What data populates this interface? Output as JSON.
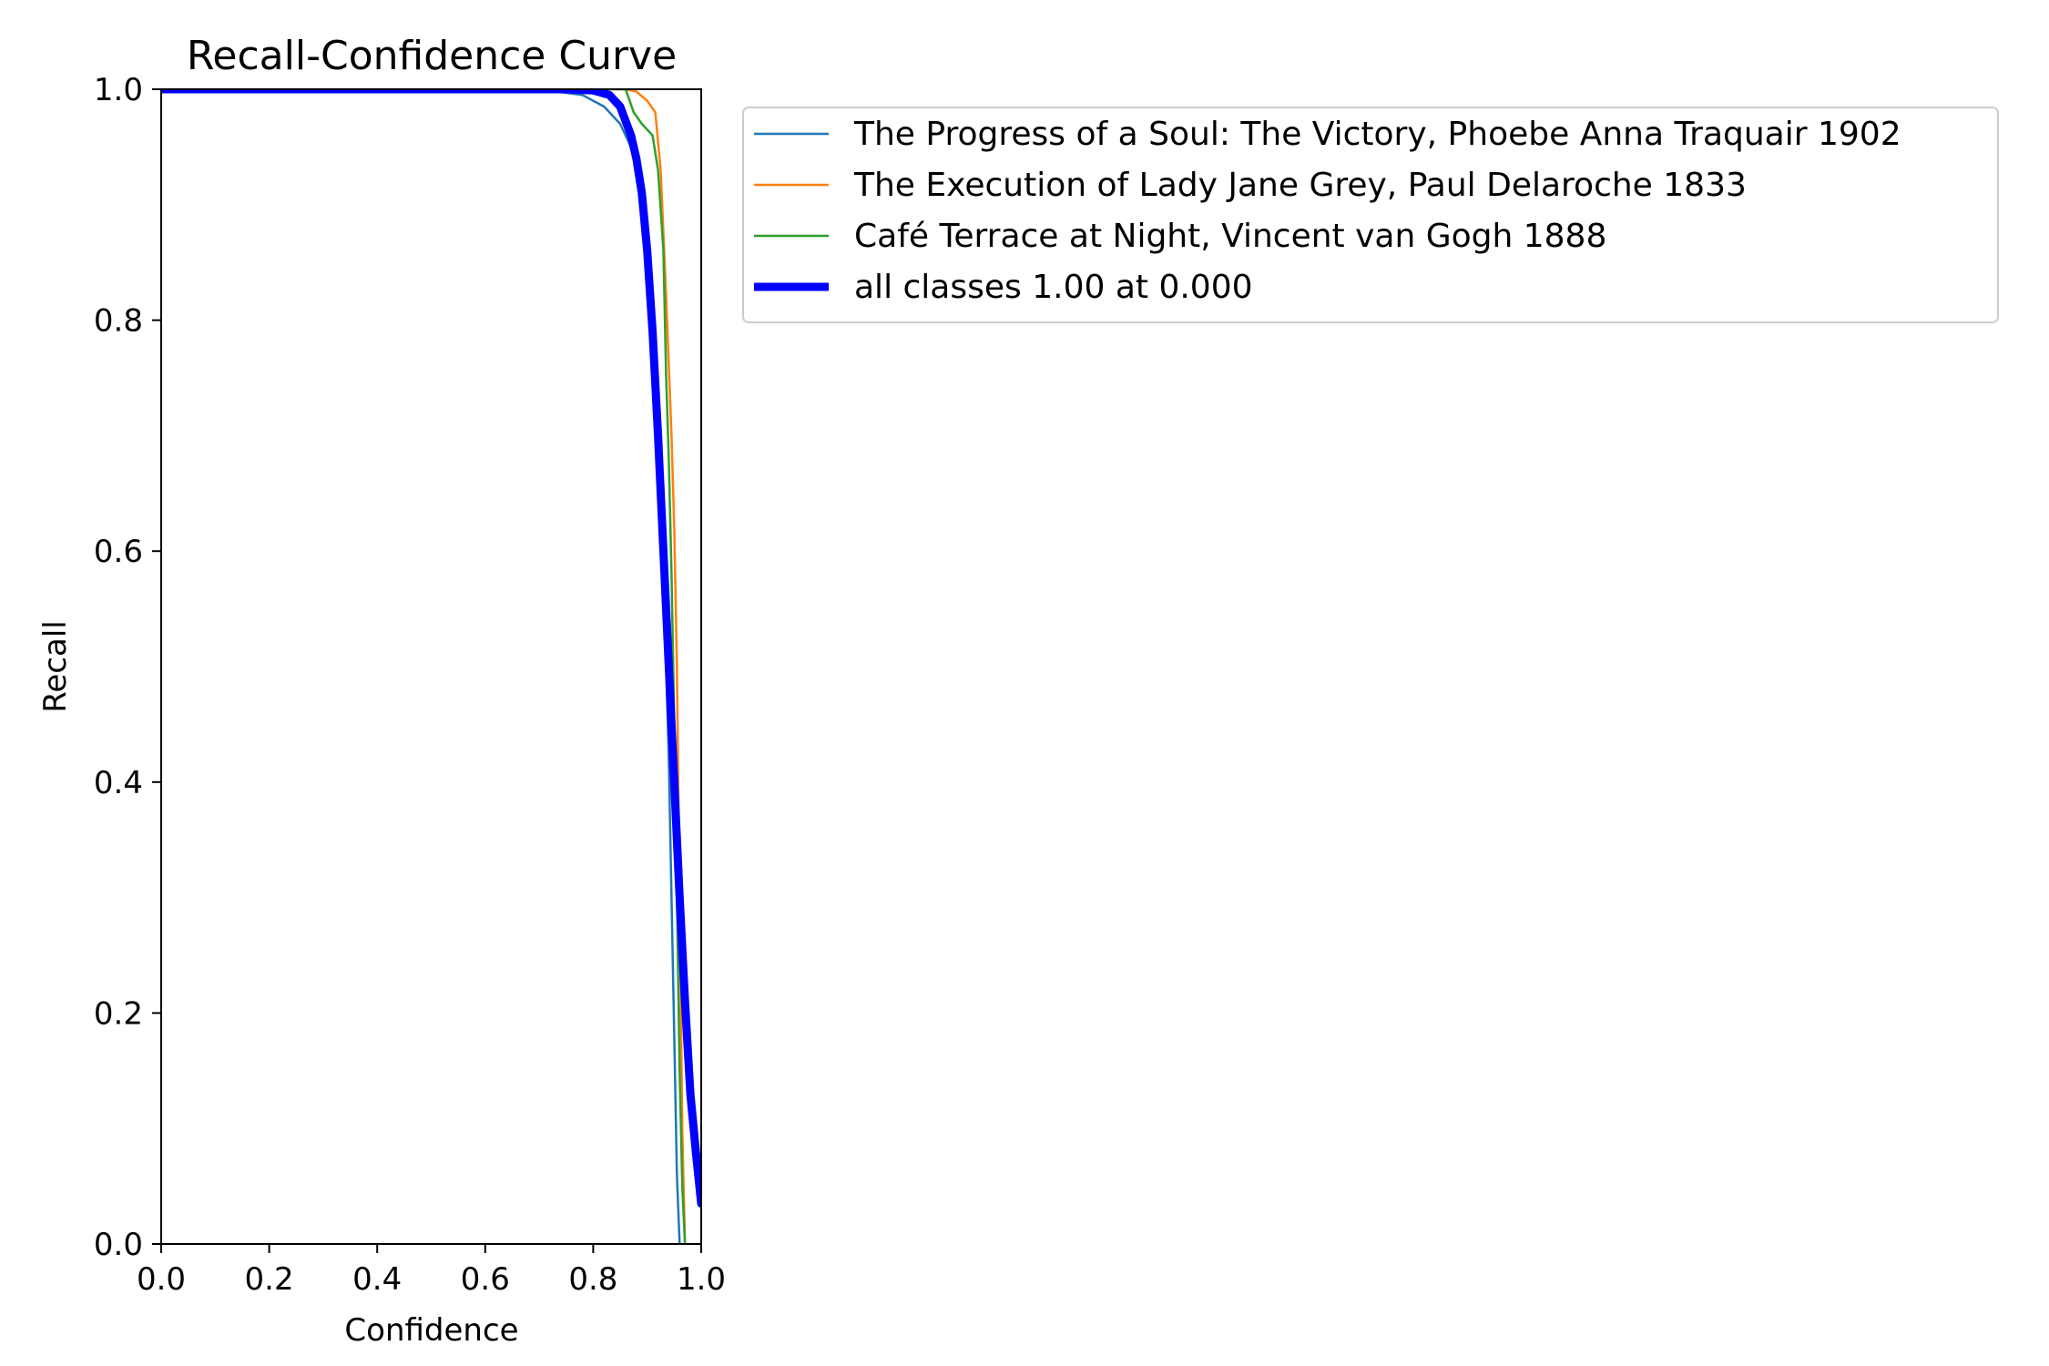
{
  "chart_data": {
    "type": "line",
    "title": "Recall-Confidence Curve",
    "xlabel": "Confidence",
    "ylabel": "Recall",
    "xlim": [
      0.0,
      1.0
    ],
    "ylim": [
      0.0,
      1.0
    ],
    "xticks": [
      "0.0",
      "0.2",
      "0.4",
      "0.6",
      "0.8",
      "1.0"
    ],
    "yticks": [
      "0.0",
      "0.2",
      "0.4",
      "0.6",
      "0.8",
      "1.0"
    ],
    "grid": false,
    "legend_position": "outside-top-right",
    "series": [
      {
        "name": "The Progress of a Soul: The Victory, Phoebe Anna Traquair 1902",
        "color": "#1f77b4",
        "x": [
          0.0,
          0.7,
          0.78,
          0.82,
          0.85,
          0.87,
          0.88,
          0.89,
          0.9,
          0.905,
          0.91,
          0.92,
          0.93,
          0.94,
          0.945,
          0.95,
          0.955,
          0.96
        ],
        "y": [
          1.0,
          1.0,
          0.995,
          0.985,
          0.97,
          0.95,
          0.93,
          0.9,
          0.85,
          0.79,
          0.75,
          0.66,
          0.58,
          0.42,
          0.3,
          0.18,
          0.06,
          0.0
        ]
      },
      {
        "name": "The Execution of Lady Jane Grey, Paul Delaroche 1833",
        "color": "#ff7f0e",
        "x": [
          0.0,
          0.86,
          0.88,
          0.9,
          0.915,
          0.925,
          0.935,
          0.945,
          0.95,
          0.955,
          0.96,
          0.965,
          0.97
        ],
        "y": [
          1.0,
          1.0,
          0.998,
          0.99,
          0.98,
          0.93,
          0.82,
          0.7,
          0.62,
          0.5,
          0.3,
          0.1,
          0.0
        ]
      },
      {
        "name": "Café Terrace at Night, Vincent van Gogh 1888",
        "color": "#2ca02c",
        "x": [
          0.0,
          0.86,
          0.875,
          0.89,
          0.91,
          0.92,
          0.93,
          0.935,
          0.94,
          0.945,
          0.95,
          0.955,
          0.96,
          0.965,
          0.97
        ],
        "y": [
          1.0,
          1.0,
          0.98,
          0.97,
          0.96,
          0.93,
          0.86,
          0.75,
          0.68,
          0.58,
          0.45,
          0.3,
          0.15,
          0.05,
          0.0
        ]
      },
      {
        "name": "all classes 1.00 at 0.000",
        "color": "#0000ff",
        "bold": true,
        "x": [
          0.0,
          0.75,
          0.8,
          0.83,
          0.85,
          0.87,
          0.88,
          0.89,
          0.9,
          0.91,
          0.92,
          0.93,
          0.94,
          0.95,
          0.96,
          0.97,
          0.98,
          0.99,
          1.0
        ],
        "y": [
          1.0,
          1.0,
          0.999,
          0.995,
          0.985,
          0.96,
          0.94,
          0.91,
          0.86,
          0.79,
          0.7,
          0.6,
          0.5,
          0.4,
          0.3,
          0.21,
          0.13,
          0.08,
          0.035
        ]
      }
    ]
  }
}
